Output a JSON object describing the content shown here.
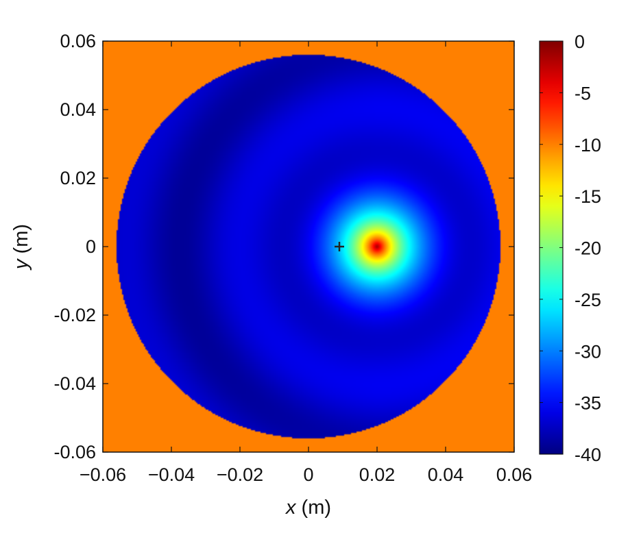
{
  "chart_data": {
    "type": "heatmap",
    "title": "",
    "xlabel": {
      "symbol": "x",
      "unit": "(m)"
    },
    "ylabel": {
      "symbol": "y",
      "unit": "(m)"
    },
    "xlim": [
      -0.06,
      0.06
    ],
    "ylim": [
      -0.06,
      0.06
    ],
    "xticks": [
      -0.06,
      -0.04,
      -0.02,
      0,
      0.02,
      0.04,
      0.06
    ],
    "xtick_labels": [
      "−0.06",
      "−0.04",
      "−0.02",
      "0",
      "0.02",
      "0.04",
      "0.06"
    ],
    "yticks": [
      0.06,
      0.04,
      0.02,
      0,
      -0.02,
      -0.04,
      -0.06
    ],
    "ytick_labels": [
      "0.06",
      "0.04",
      "0.02",
      "0",
      "-0.02",
      "-0.04",
      "-0.06"
    ],
    "colorbar": {
      "range": [
        -40,
        0
      ],
      "ticks": [
        0,
        -5,
        -10,
        -15,
        -20,
        -25,
        -30,
        -35,
        -40
      ],
      "tick_labels": [
        "0",
        "-5",
        "-10",
        "-15",
        "-20",
        "-25",
        "-30",
        "-35",
        "-40"
      ],
      "colormap": "jet",
      "colors": [
        "#00008f",
        "#0000ff",
        "#00ffff",
        "#ffff00",
        "#ff0000",
        "#800000"
      ]
    },
    "background_value": -10,
    "disk": {
      "center": [
        0,
        0
      ],
      "radius": 0.056,
      "base_value": -37
    },
    "peak": {
      "x": 0.02,
      "y": 0,
      "value": 0
    },
    "marker": {
      "x": 0.009,
      "y": 0,
      "symbol": "+"
    },
    "grid": false
  }
}
